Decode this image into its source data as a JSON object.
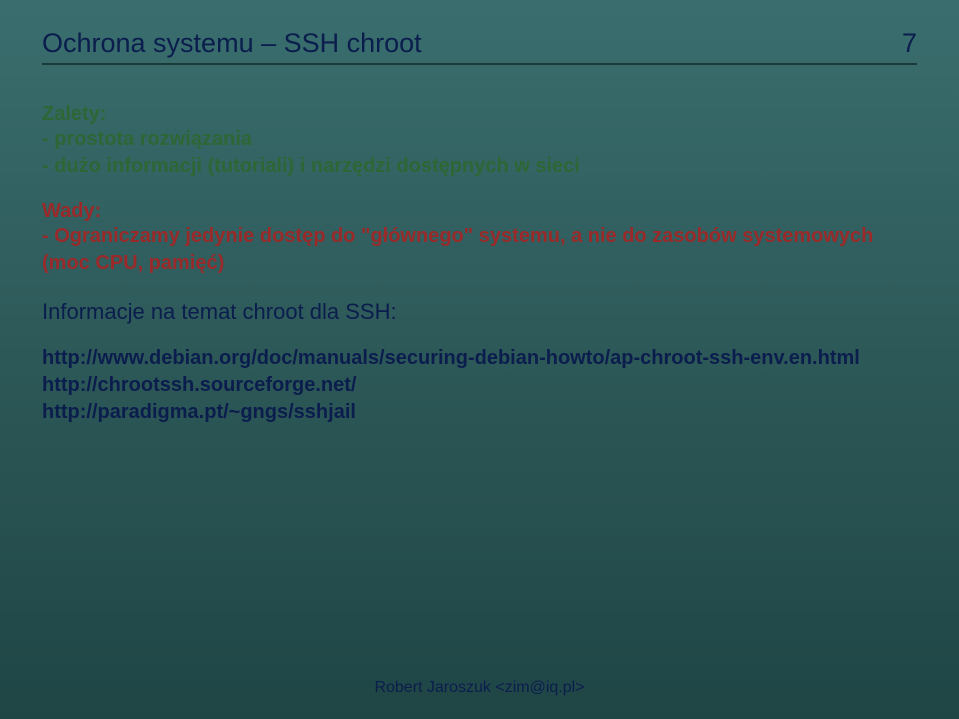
{
  "header": {
    "title": "Ochrona systemu – SSH chroot",
    "page_number": "7"
  },
  "zalety": {
    "heading": "Zalety:",
    "lines": [
      "- prostota rozwiązania",
      "- dużo informacji (tutoriali) i narzędzi dostępnych w sieci"
    ]
  },
  "wady": {
    "heading": "Wady:",
    "lines": [
      "- Ograniczamy jedynie dostęp do \"głównego\" systemu, a nie do zasobów systemowych (moc CPU, pamięć)"
    ]
  },
  "info": {
    "heading": "Informacje na temat chroot dla SSH:",
    "links": [
      "http://www.debian.org/doc/manuals/securing-debian-howto/ap-chroot-ssh-env.en.html",
      "http://chrootssh.sourceforge.net/",
      "http://paradigma.pt/~gngs/sshjail"
    ]
  },
  "footer": {
    "text": "Robert Jaroszuk <zim@iq.pl>"
  },
  "colors": {
    "background_top": "#3a6e6e",
    "background_bottom": "#1f4545",
    "title_color": "#0b1d4d",
    "zalety_color": "#2e6635",
    "wady_color": "#9a2a2a",
    "link_color": "#0b1d4d",
    "footer_color": "#0b1d4d",
    "divider_color": "#1a3a3a"
  }
}
